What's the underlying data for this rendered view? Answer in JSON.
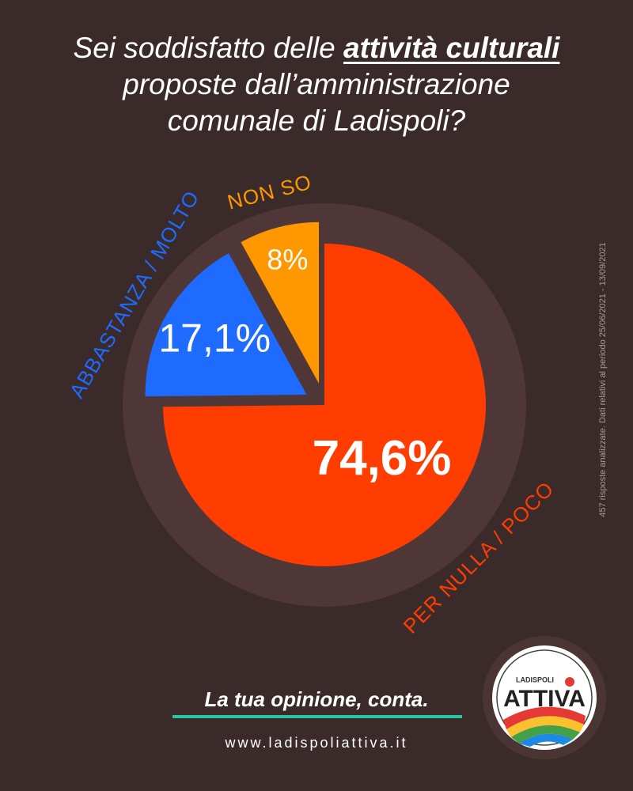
{
  "chart_data": {
    "type": "pie",
    "title": {
      "line1": "Sei soddisfatto delle",
      "highlight": "attività culturali",
      "line2": "proposte dall’amministrazione",
      "line3": "comunale di Ladispoli?"
    },
    "categories": [
      "PER NULLA / POCO",
      "ABBASTANZA / MOLTO",
      "NON SO"
    ],
    "values": [
      74.6,
      17.1,
      8
    ],
    "value_labels": [
      "74,6%",
      "17,1%",
      "8%"
    ],
    "colors": [
      "#ff3d00",
      "#1f6bff",
      "#ff9800"
    ],
    "note": "457 risposte analizzate. Dati relativi al periodo 25/06/2021 - 13/09/2021"
  },
  "footer": {
    "tagline": "La tua opinione, conta.",
    "url": "www.ladispoliattiva.it"
  },
  "logo": {
    "top": "LADISPOLI",
    "name": "ATTIVA"
  }
}
